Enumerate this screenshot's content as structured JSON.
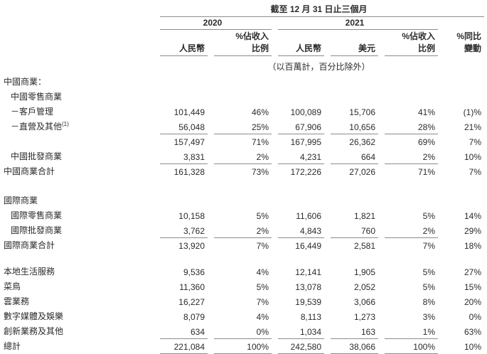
{
  "page": {
    "background": "#ffffff",
    "text_color": "#2b2b2b",
    "rule_color": "#8c8c8c"
  },
  "header": {
    "period_title": "截至 12 月 31 日止三個月",
    "years": {
      "y2020": "2020",
      "y2021": "2021"
    },
    "columns": {
      "rmb_2020": "人民幣",
      "pct_revenue_2020_line1": "%佔收入",
      "pct_revenue_2020_line2": "比例",
      "rmb_2021": "人民幣",
      "usd_2021": "美元",
      "pct_revenue_2021_line1": "%佔收入",
      "pct_revenue_2021_line2": "比例",
      "yoy_line1": "%同比",
      "yoy_line2": "變動"
    },
    "units_note": "（以百萬計，百分比除外）"
  },
  "rows": [
    {
      "label": "中國商業："
    },
    {
      "label": "中國零售商業"
    },
    {
      "label": "－客戶管理",
      "c1": "101,449",
      "c2": "46%",
      "c3": "100,089",
      "c4": "15,706",
      "c5": "41%",
      "c6": "(1)%"
    },
    {
      "label": "－直營及其他",
      "sup": "(1)",
      "c1": "56,048",
      "c2": "25%",
      "c3": "67,906",
      "c4": "10,656",
      "c5": "28%",
      "c6": "21%"
    },
    {
      "label": "",
      "c1": "157,497",
      "c2": "71%",
      "c3": "167,995",
      "c4": "26,362",
      "c5": "69%",
      "c6": "7%"
    },
    {
      "label": "中國批發商業",
      "c1": "3,831",
      "c2": "2%",
      "c3": "4,231",
      "c4": "664",
      "c5": "2%",
      "c6": "10%"
    },
    {
      "label": "中國商業合計",
      "c1": "161,328",
      "c2": "73%",
      "c3": "172,226",
      "c4": "27,026",
      "c5": "71%",
      "c6": "7%"
    },
    {
      "label": "國際商業"
    },
    {
      "label": "國際零售商業",
      "c1": "10,158",
      "c2": "5%",
      "c3": "11,606",
      "c4": "1,821",
      "c5": "5%",
      "c6": "14%"
    },
    {
      "label": "國際批發商業",
      "c1": "3,762",
      "c2": "2%",
      "c3": "4,843",
      "c4": "760",
      "c5": "2%",
      "c6": "29%"
    },
    {
      "label": "國際商業合計",
      "c1": "13,920",
      "c2": "7%",
      "c3": "16,449",
      "c4": "2,581",
      "c5": "7%",
      "c6": "18%"
    },
    {
      "label": "本地生活服務",
      "c1": "9,536",
      "c2": "4%",
      "c3": "12,141",
      "c4": "1,905",
      "c5": "5%",
      "c6": "27%"
    },
    {
      "label": "菜鳥",
      "c1": "11,360",
      "c2": "5%",
      "c3": "13,078",
      "c4": "2,052",
      "c5": "5%",
      "c6": "15%"
    },
    {
      "label": "雲業務",
      "c1": "16,227",
      "c2": "7%",
      "c3": "19,539",
      "c4": "3,066",
      "c5": "8%",
      "c6": "20%"
    },
    {
      "label": "數字媒體及娛樂",
      "c1": "8,079",
      "c2": "4%",
      "c3": "8,113",
      "c4": "1,273",
      "c5": "3%",
      "c6": "0%"
    },
    {
      "label": "創新業務及其他",
      "c1": "634",
      "c2": "0%",
      "c3": "1,034",
      "c4": "163",
      "c5": "1%",
      "c6": "63%"
    },
    {
      "label": "總計",
      "c1": "221,084",
      "c2": "100%",
      "c3": "242,580",
      "c4": "38,066",
      "c5": "100%",
      "c6": "10%"
    }
  ]
}
